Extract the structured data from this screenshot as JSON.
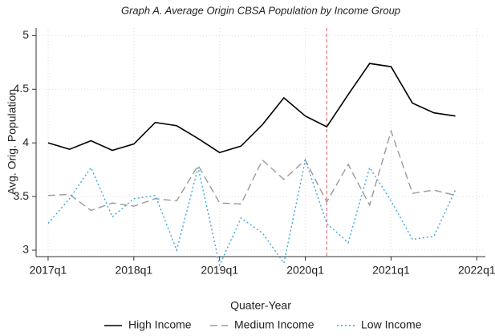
{
  "chart_data": {
    "type": "line",
    "title": "Graph A. Average Origin CBSA Population by Income Group",
    "x_label": "Quater-Year",
    "y_label": "Avg. Orig. Population",
    "x": [
      2017,
      2017.25,
      2017.5,
      2017.75,
      2018,
      2018.25,
      2018.5,
      2018.75,
      2019,
      2019.25,
      2019.5,
      2019.75,
      2020,
      2020.25,
      2020.5,
      2020.75,
      2021,
      2021.25,
      2021.5,
      2021.75
    ],
    "series": [
      {
        "name": "High Income",
        "color": "#000000",
        "style": "solid",
        "values": [
          4.0,
          3.94,
          4.02,
          3.93,
          3.99,
          4.19,
          4.16,
          4.04,
          3.91,
          3.97,
          4.17,
          4.42,
          4.25,
          4.15,
          4.45,
          4.74,
          4.71,
          4.37,
          4.28,
          4.25
        ]
      },
      {
        "name": "Medium Income",
        "color": "#9a9a9a",
        "style": "dashed",
        "values": [
          3.51,
          3.52,
          3.37,
          3.44,
          3.41,
          3.48,
          3.46,
          3.79,
          3.44,
          3.43,
          3.84,
          3.66,
          3.84,
          3.45,
          3.8,
          3.42,
          4.11,
          3.53,
          3.56,
          3.51
        ]
      },
      {
        "name": "Low Income",
        "color": "#3aa6dd",
        "style": "dotted",
        "values": [
          3.25,
          3.48,
          3.77,
          3.31,
          3.48,
          3.51,
          3.0,
          3.77,
          2.86,
          3.3,
          3.16,
          2.88,
          3.84,
          3.25,
          3.07,
          3.77,
          3.46,
          3.1,
          3.13,
          3.56
        ]
      }
    ],
    "xlim": [
      2016.86,
      2022.1
    ],
    "ylim": [
      2.94,
      5.07
    ],
    "xticks": [
      {
        "value": 2017,
        "label": "2017q1"
      },
      {
        "value": 2018,
        "label": "2018q1"
      },
      {
        "value": 2019,
        "label": "2019q1"
      },
      {
        "value": 2020,
        "label": "2020q1"
      },
      {
        "value": 2021,
        "label": "2021q1"
      },
      {
        "value": 2022,
        "label": "2022q1"
      }
    ],
    "yticks": [
      3,
      3.5,
      4,
      4.5,
      5
    ],
    "vline": {
      "x": 2020.25,
      "color": "#e0707a"
    },
    "grid": true,
    "legend": "bottom"
  }
}
